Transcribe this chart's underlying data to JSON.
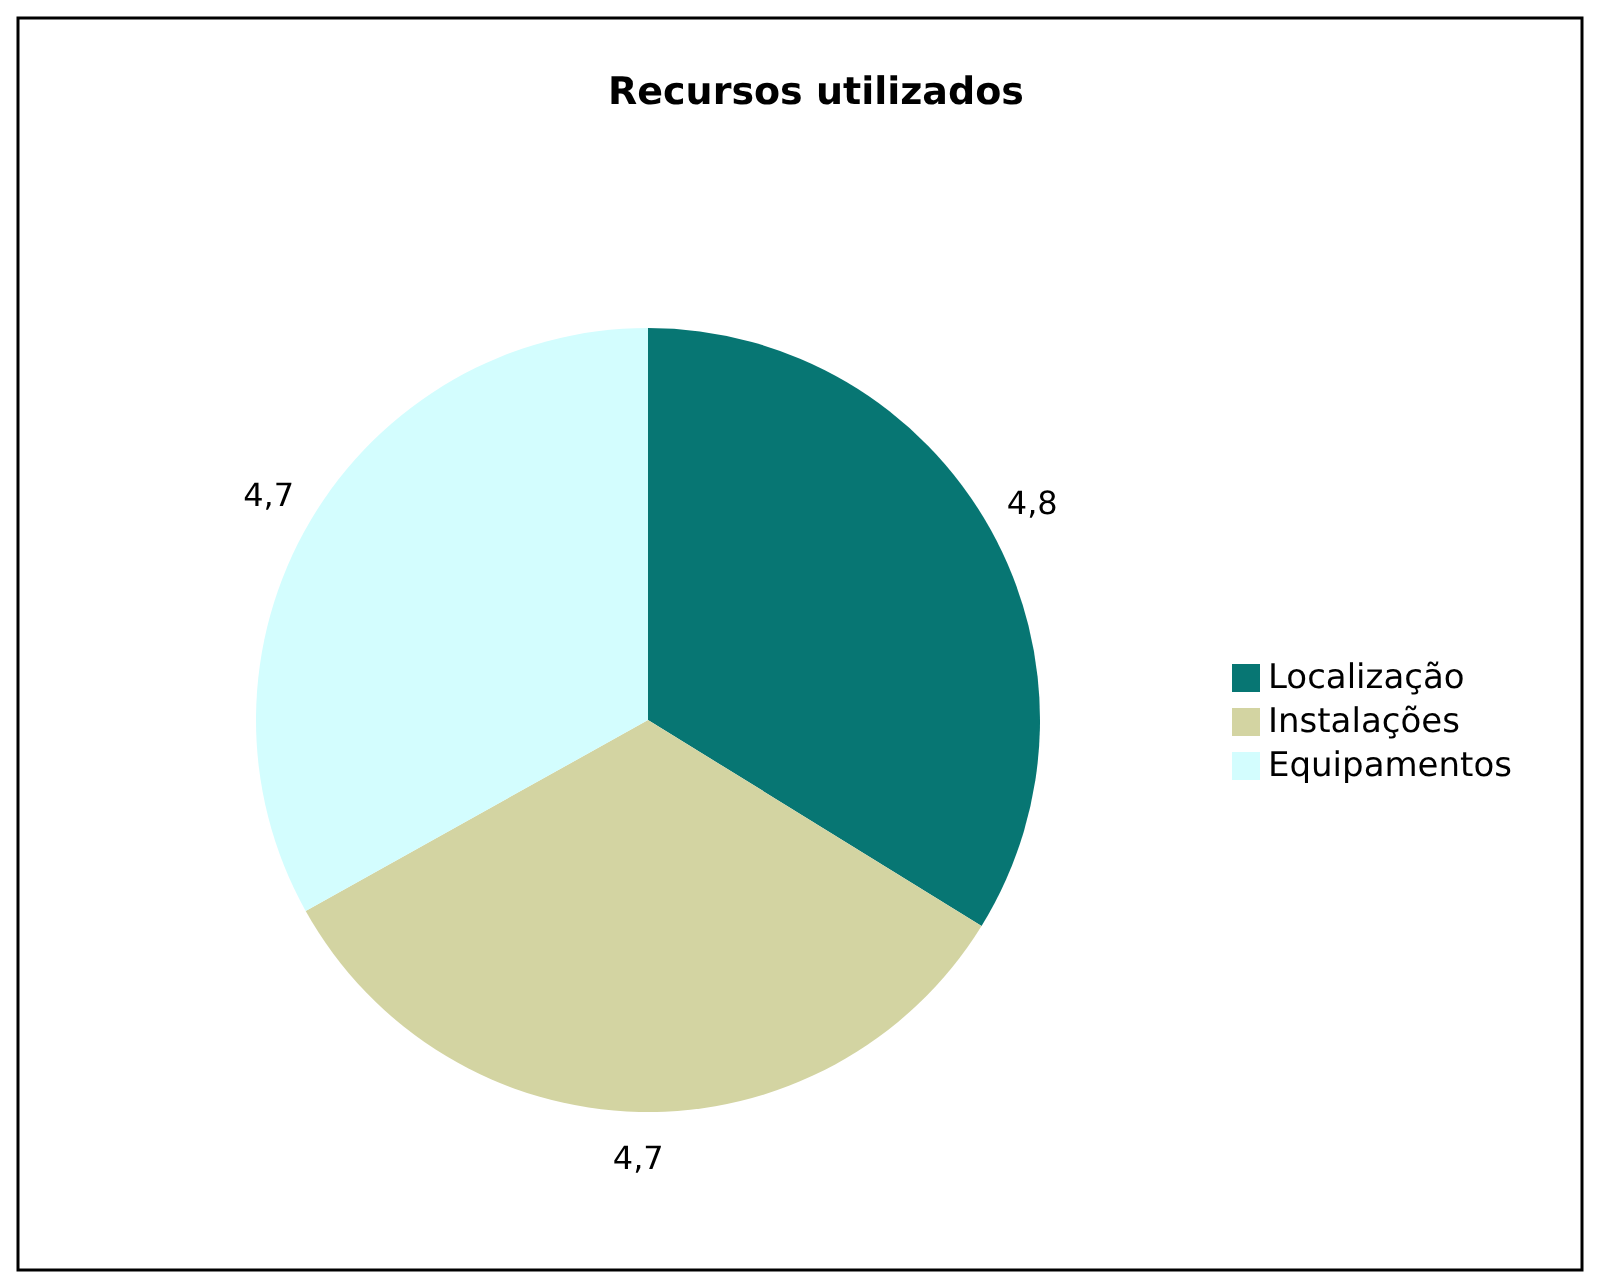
{
  "chart_data": {
    "type": "pie",
    "title": "Recursos utilizados",
    "categories": [
      "Localização",
      "Instalações",
      "Equipamentos"
    ],
    "values": [
      4.8,
      4.7,
      4.7
    ],
    "value_labels": [
      "4,8",
      "4,7",
      "4,7"
    ],
    "colors": [
      "#077673",
      "#d3d4a2",
      "#d3fdfe"
    ],
    "legend": "right"
  }
}
